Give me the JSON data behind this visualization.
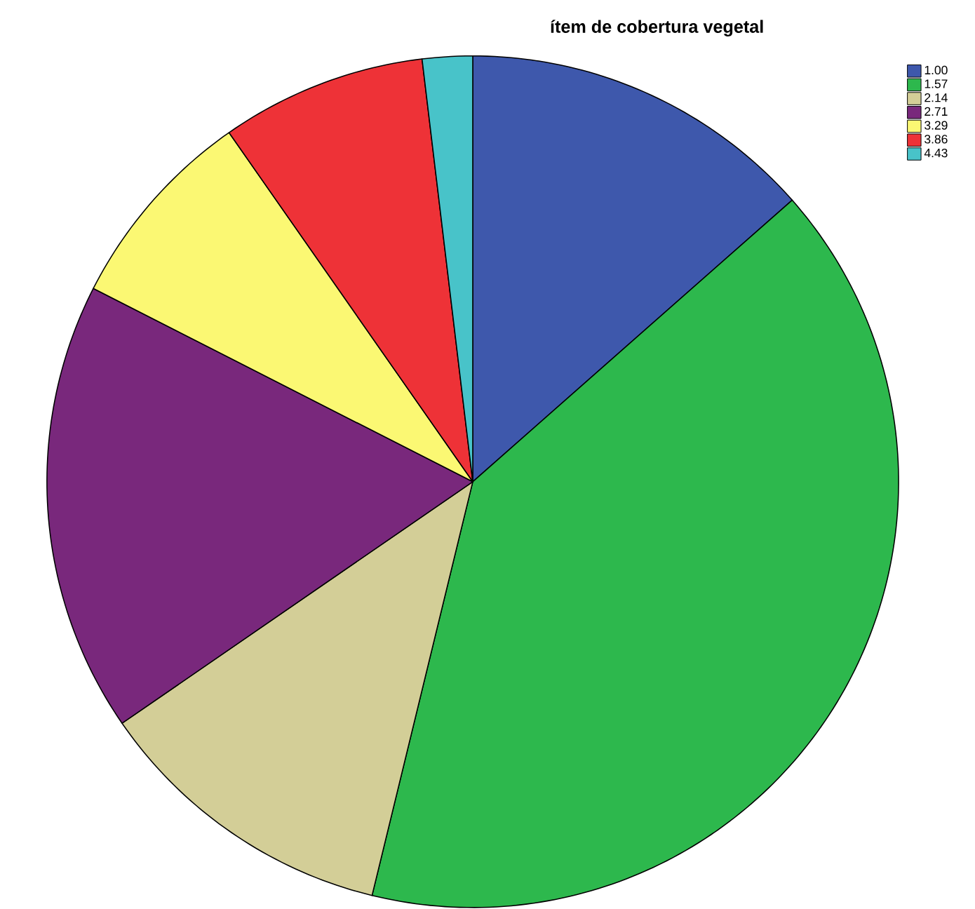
{
  "chart_data": {
    "type": "pie",
    "title": "ítem de cobertura vegetal",
    "categories": [
      "1.00",
      "1.57",
      "2.14",
      "2.71",
      "3.29",
      "3.86",
      "4.43"
    ],
    "values": [
      13.5,
      40.3,
      11.6,
      17.1,
      7.8,
      7.8,
      1.9
    ],
    "colors": [
      "#3e58ac",
      "#2db84d",
      "#d3ce97",
      "#79287c",
      "#fbf873",
      "#ee3237",
      "#48c3c9"
    ],
    "legend": "top right"
  }
}
